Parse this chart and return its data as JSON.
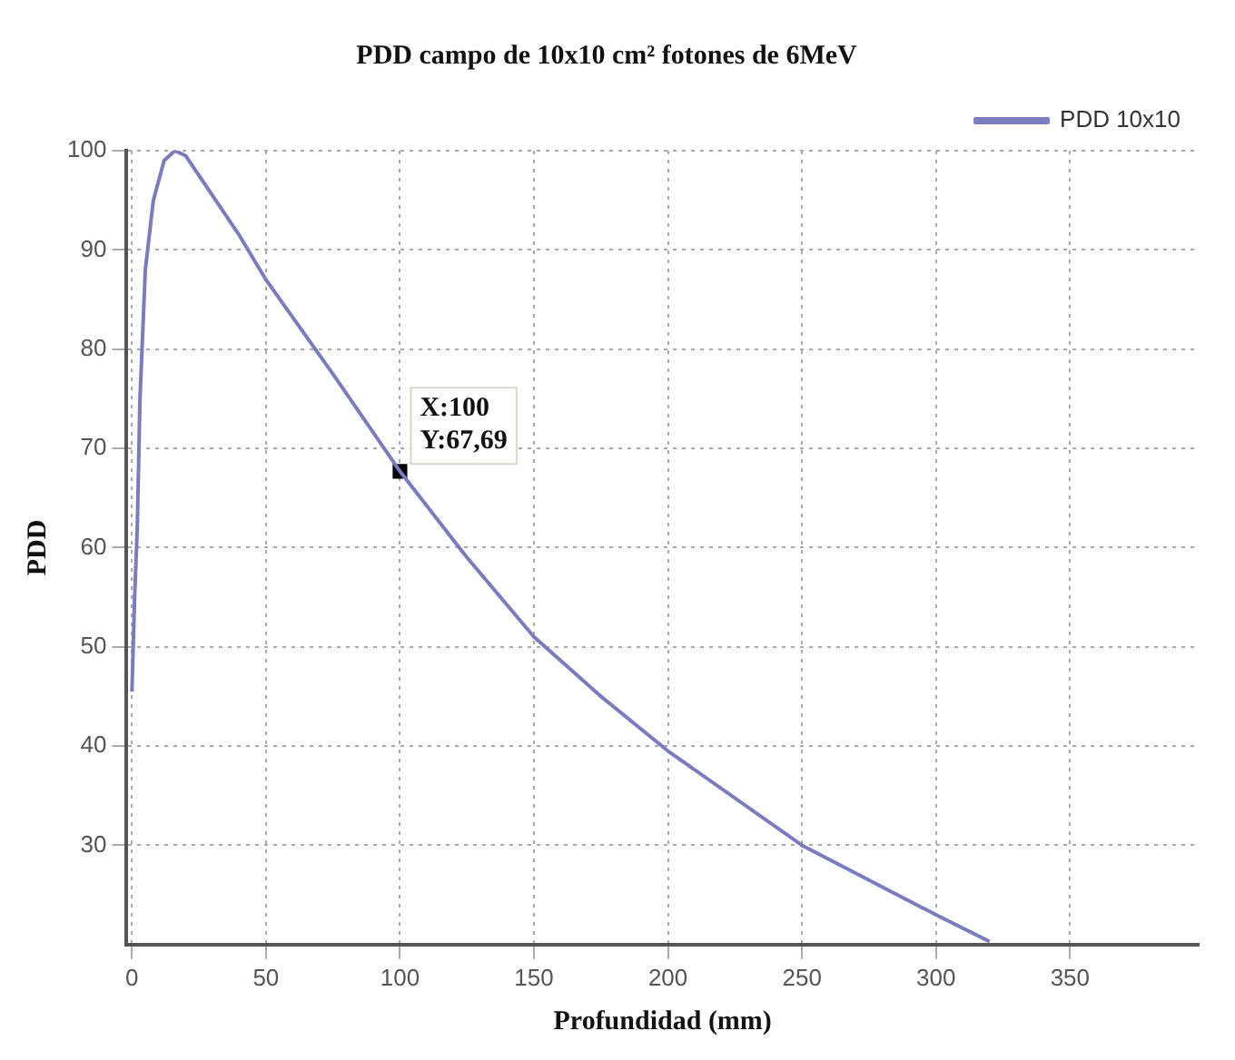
{
  "chart_data": {
    "type": "line",
    "title": "PDD campo de 10x10 cm² fotones de 6MeV",
    "xlabel": "Profundidad (mm)",
    "ylabel": "PDD",
    "xlim": [
      -2,
      398
    ],
    "xticks": [
      0,
      50,
      100,
      150,
      200,
      250,
      300,
      350
    ],
    "ylim": [
      20,
      100
    ],
    "yticks": [
      30,
      40,
      50,
      60,
      70,
      80,
      90,
      100
    ],
    "grid": true,
    "legend": "top right",
    "line_style": "solid",
    "series": [
      {
        "name": "PDD 10x10",
        "color": "#7b7bbf",
        "marker": "none",
        "x": [
          0,
          1,
          2,
          3,
          5,
          8,
          12,
          16,
          20,
          30,
          40,
          50,
          75,
          100,
          125,
          150,
          175,
          200,
          250,
          300,
          320
        ],
        "values": [
          45.5,
          55,
          62,
          75,
          88,
          95,
          99,
          100,
          99.5,
          95.5,
          91.5,
          87,
          77.5,
          67.69,
          59,
          51,
          45,
          39.5,
          30,
          23,
          20.3
        ]
      },
      {
        "type": "scatter",
        "color": "#000000",
        "marker": "square",
        "x": [
          100
        ],
        "values": [
          67.69
        ]
      }
    ],
    "annotations": [
      {
        "text": "X:100\nY:67,69",
        "x": 100,
        "y": 67.69
      }
    ]
  }
}
